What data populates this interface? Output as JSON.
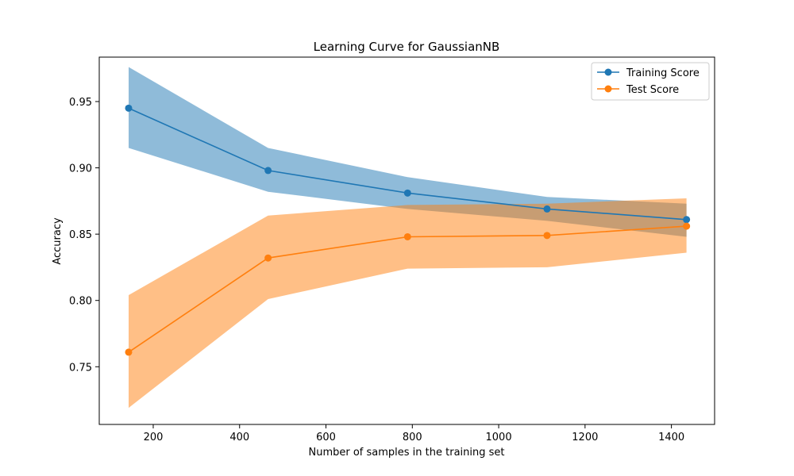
{
  "chart_data": {
    "type": "line",
    "title": "Learning Curve for GaussianNB",
    "xlabel": "Number of samples in the training set",
    "ylabel": "Accuracy",
    "xlim": [
      75,
      1500
    ],
    "ylim": [
      0.7065,
      0.9835
    ],
    "x_ticks": [
      200,
      400,
      600,
      800,
      1000,
      1200,
      1400
    ],
    "y_ticks": [
      0.75,
      0.8,
      0.85,
      0.9,
      0.95
    ],
    "grid": false,
    "legend_position": "top-right",
    "x": [
      143,
      466,
      789,
      1112,
      1435
    ],
    "series": [
      {
        "name": "Training Score",
        "color": "#1f77b4",
        "band_color": "#1f77b4",
        "values": [
          0.945,
          0.898,
          0.881,
          0.869,
          0.861
        ],
        "lower": [
          0.915,
          0.882,
          0.869,
          0.86,
          0.848
        ],
        "upper": [
          0.976,
          0.915,
          0.893,
          0.878,
          0.873
        ]
      },
      {
        "name": "Test Score",
        "color": "#ff7f0e",
        "band_color": "#ff7f0e",
        "values": [
          0.761,
          0.832,
          0.848,
          0.849,
          0.856
        ],
        "lower": [
          0.719,
          0.801,
          0.824,
          0.825,
          0.836
        ],
        "upper": [
          0.804,
          0.864,
          0.872,
          0.873,
          0.877
        ]
      }
    ]
  }
}
